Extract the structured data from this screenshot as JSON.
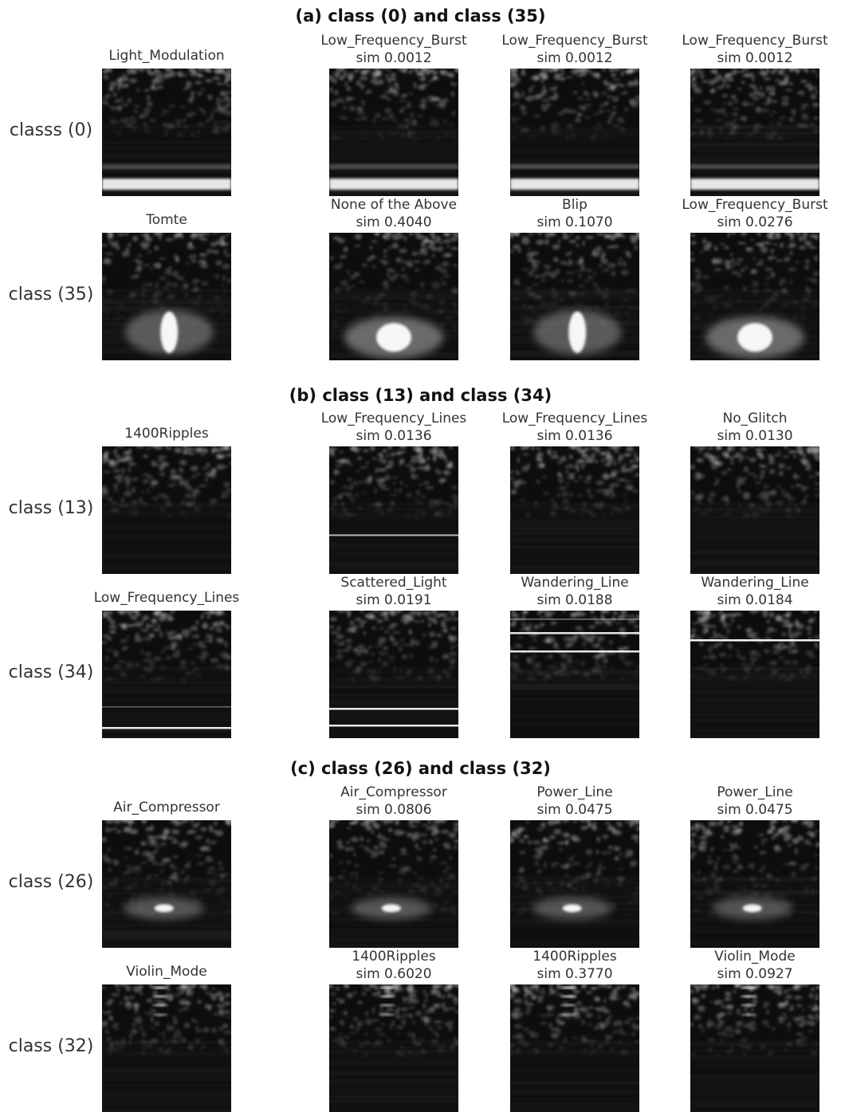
{
  "sections": [
    {
      "title": "(a) class (0) and class (35)",
      "rows": [
        {
          "label": "classs (0)",
          "query": {
            "name": "Light_Modulation",
            "pattern": "band-bottom"
          },
          "matches": [
            {
              "name": "Low_Frequency_Burst",
              "sim": "sim 0.0012",
              "pattern": "band-bottom"
            },
            {
              "name": "Low_Frequency_Burst",
              "sim": "sim 0.0012",
              "pattern": "band-bottom"
            },
            {
              "name": "Low_Frequency_Burst",
              "sim": "sim 0.0012",
              "pattern": "band-bottom"
            }
          ]
        },
        {
          "label": "class (35)",
          "query": {
            "name": "Tomte",
            "pattern": "blob-tall"
          },
          "matches": [
            {
              "name": "None of the Above",
              "sim": "sim 0.4040",
              "pattern": "blob-wide"
            },
            {
              "name": "Blip",
              "sim": "sim 0.1070",
              "pattern": "blob-tall"
            },
            {
              "name": "Low_Frequency_Burst",
              "sim": "sim 0.0276",
              "pattern": "blob-wide"
            }
          ]
        }
      ]
    },
    {
      "title": "(b) class (13) and class (34)",
      "rows": [
        {
          "label": "class (13)",
          "query": {
            "name": "1400Ripples",
            "pattern": "striated"
          },
          "matches": [
            {
              "name": "Low_Frequency_Lines",
              "sim": "sim 0.0136",
              "pattern": "striated-line"
            },
            {
              "name": "Low_Frequency_Lines",
              "sim": "sim 0.0136",
              "pattern": "striated"
            },
            {
              "name": "No_Glitch",
              "sim": "sim 0.0130",
              "pattern": "striated"
            }
          ]
        },
        {
          "label": "class (34)",
          "query": {
            "name": "Low_Frequency_Lines",
            "pattern": "lines-bottom"
          },
          "matches": [
            {
              "name": "Scattered_Light",
              "sim": "sim 0.0191",
              "pattern": "lines-bottom-double"
            },
            {
              "name": "Wandering_Line",
              "sim": "sim 0.0188",
              "pattern": "wander-lines"
            },
            {
              "name": "Wandering_Line",
              "sim": "sim 0.0184",
              "pattern": "wander-line"
            }
          ]
        }
      ]
    },
    {
      "title": "(c) class (26) and class (32)",
      "rows": [
        {
          "label": "class (26)",
          "query": {
            "name": "Air_Compressor",
            "pattern": "spot"
          },
          "matches": [
            {
              "name": "Air_Compressor",
              "sim": "sim 0.0806",
              "pattern": "spot"
            },
            {
              "name": "Power_Line",
              "sim": "sim 0.0475",
              "pattern": "spot"
            },
            {
              "name": "Power_Line",
              "sim": "sim 0.0475",
              "pattern": "spot"
            }
          ]
        },
        {
          "label": "class (32)",
          "query": {
            "name": "Violin_Mode",
            "pattern": "violin"
          },
          "matches": [
            {
              "name": "1400Ripples",
              "sim": "sim 0.6020",
              "pattern": "violin"
            },
            {
              "name": "1400Ripples",
              "sim": "sim 0.3770",
              "pattern": "violin"
            },
            {
              "name": "Violin_Mode",
              "sim": "sim 0.0927",
              "pattern": "violin"
            }
          ]
        }
      ]
    }
  ]
}
